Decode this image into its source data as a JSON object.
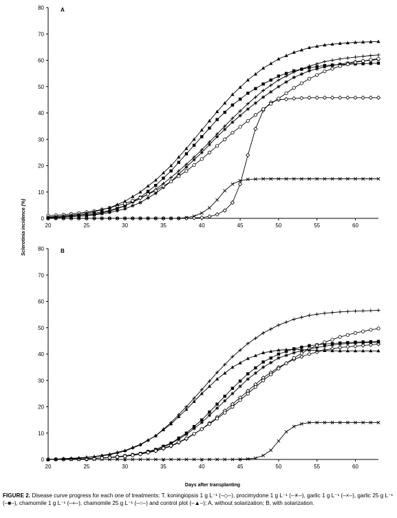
{
  "figure": {
    "panel_labels": [
      "A",
      "B"
    ],
    "ylabel": "Sclerotinia incidence (%)",
    "xlabel": "Days after transplanting",
    "caption_lead": "FIGURE 2.",
    "caption_text": "Disease curve progress for each one of treatments: T. koningiopsis 1 g L⁻¹ (–◇–), procimydone 1 g L⁻¹ (–✳–), garlic 1 g L⁻¹ (–×–), garlic 25 g L⁻¹ (–■–), chamomile 1 g L⁻¹ (–+–), chamomile 25 g L⁻¹ (–○–) and control plot (–▲–); A, without solarization; B, with solarization."
  },
  "chart_data": [
    {
      "type": "line",
      "panel": "A",
      "xlim": [
        20,
        63
      ],
      "ylim": [
        0,
        80
      ],
      "xticks": [
        20,
        25,
        30,
        35,
        40,
        45,
        50,
        55,
        60
      ],
      "yticks": [
        0,
        10,
        20,
        30,
        40,
        50,
        60,
        70,
        80
      ],
      "grid": false,
      "series": [
        {
          "marker": "diamond",
          "x": [
            20,
            22,
            24,
            26,
            28,
            30,
            32,
            34,
            36,
            38,
            40,
            41,
            42,
            43,
            44,
            45,
            46,
            47,
            48,
            49,
            50,
            52,
            54,
            56,
            58,
            60,
            62,
            63
          ],
          "y": [
            0,
            0,
            0,
            0,
            0,
            0,
            0,
            0,
            0,
            0,
            0.3,
            0.7,
            1.5,
            3,
            6,
            13,
            24,
            34,
            41,
            44,
            45,
            45.5,
            45.8,
            45.8,
            45.8,
            45.8,
            45.8,
            45.8
          ]
        },
        {
          "marker": "star",
          "x": [
            20,
            22,
            24,
            26,
            28,
            30,
            32,
            34,
            36,
            38,
            40,
            42,
            44,
            46,
            48,
            50,
            52,
            54,
            56,
            58,
            60,
            62,
            63
          ],
          "y": [
            0.3,
            0.5,
            0.8,
            1.3,
            2.2,
            3.6,
            6,
            9.5,
            14,
            19.5,
            25,
            31,
            36.5,
            41.5,
            46,
            50,
            53.5,
            56,
            57.5,
            58.5,
            59.5,
            60,
            60.3
          ]
        },
        {
          "marker": "x",
          "x": [
            20,
            22,
            24,
            26,
            28,
            30,
            32,
            34,
            36,
            37,
            38,
            39,
            40,
            41,
            42,
            43,
            44,
            45,
            46,
            48,
            50,
            52,
            54,
            56,
            58,
            60,
            62,
            63
          ],
          "y": [
            0,
            0,
            0,
            0,
            0,
            0,
            0,
            0,
            0,
            0,
            0.3,
            0.8,
            2,
            4,
            7,
            10.5,
            13,
            14.3,
            14.8,
            15,
            15,
            15,
            15,
            15,
            15,
            15,
            15,
            15
          ]
        },
        {
          "marker": "square",
          "x": [
            20,
            22,
            24,
            26,
            28,
            30,
            32,
            34,
            36,
            38,
            40,
            42,
            44,
            46,
            48,
            50,
            52,
            54,
            56,
            58,
            60,
            62,
            63
          ],
          "y": [
            0.2,
            0.4,
            0.8,
            1.5,
            2.7,
            4.7,
            8,
            12.5,
            18,
            24.5,
            31,
            37.5,
            43,
            47.5,
            51,
            54,
            56,
            57.2,
            58,
            58.4,
            58.6,
            58.8,
            58.9
          ]
        },
        {
          "marker": "plus",
          "x": [
            20,
            22,
            24,
            26,
            28,
            30,
            32,
            34,
            36,
            38,
            40,
            42,
            44,
            46,
            48,
            50,
            52,
            54,
            56,
            58,
            60,
            62,
            63
          ],
          "y": [
            0.5,
            0.8,
            1.2,
            1.9,
            3,
            4.8,
            7.5,
            11,
            15.5,
            20.5,
            26,
            32,
            38,
            43.5,
            48.5,
            52.5,
            55.5,
            57.8,
            59.5,
            60.5,
            61.2,
            61.8,
            62
          ]
        },
        {
          "marker": "circle",
          "x": [
            20,
            22,
            24,
            26,
            28,
            30,
            32,
            34,
            36,
            38,
            40,
            42,
            44,
            46,
            48,
            50,
            52,
            54,
            56,
            58,
            60,
            62,
            63
          ],
          "y": [
            1,
            1.4,
            2,
            2.8,
            4,
            5.6,
            7.8,
            10.5,
            14,
            18,
            22.5,
            27.5,
            32.5,
            37,
            41.5,
            45.5,
            49.5,
            53,
            55.8,
            57.8,
            59.2,
            60.2,
            60.6
          ]
        },
        {
          "marker": "triangle",
          "x": [
            20,
            22,
            24,
            26,
            28,
            30,
            32,
            34,
            36,
            38,
            40,
            42,
            44,
            46,
            48,
            50,
            52,
            54,
            56,
            58,
            60,
            62,
            63
          ],
          "y": [
            0.5,
            0.9,
            1.5,
            2.5,
            4,
            6.5,
            10,
            14.5,
            20,
            26.5,
            33.5,
            40.5,
            47,
            52.5,
            57,
            60.5,
            63,
            64.8,
            65.8,
            66.4,
            66.8,
            67,
            67.1
          ]
        }
      ]
    },
    {
      "type": "line",
      "panel": "B",
      "xlim": [
        20,
        63
      ],
      "ylim": [
        0,
        80
      ],
      "xticks": [
        20,
        25,
        30,
        35,
        40,
        45,
        50,
        55,
        60
      ],
      "yticks": [
        0,
        10,
        20,
        30,
        40,
        50,
        60,
        70,
        80
      ],
      "grid": false,
      "series": [
        {
          "marker": "diamond",
          "x": [
            20,
            22,
            24,
            26,
            28,
            30,
            32,
            34,
            36,
            38,
            40,
            42,
            44,
            46,
            48,
            50,
            52,
            54,
            56,
            58,
            60,
            62,
            63
          ],
          "y": [
            0,
            0.1,
            0.2,
            0.4,
            0.7,
            1.2,
            2,
            3.2,
            5,
            7.8,
            11.5,
            16,
            21,
            26,
            31,
            35,
            38,
            40,
            41.5,
            42.5,
            43,
            43.5,
            43.8
          ]
        },
        {
          "marker": "star",
          "x": [
            20,
            22,
            24,
            26,
            28,
            30,
            32,
            34,
            36,
            38,
            40,
            42,
            44,
            46,
            48,
            50,
            52,
            54,
            56,
            58,
            60,
            62,
            63
          ],
          "y": [
            0,
            0.1,
            0.2,
            0.4,
            0.7,
            1.2,
            2,
            3.5,
            6,
            9.5,
            14,
            19.5,
            25,
            30.5,
            35,
            38.5,
            40.5,
            42,
            43,
            43.8,
            44.2,
            44.4,
            44.5
          ]
        },
        {
          "marker": "x",
          "x": [
            20,
            22,
            24,
            26,
            28,
            30,
            32,
            34,
            36,
            38,
            40,
            42,
            44,
            46,
            47,
            48,
            49,
            50,
            51,
            52,
            53,
            54,
            56,
            58,
            60,
            62,
            63
          ],
          "y": [
            0,
            0,
            0,
            0,
            0,
            0,
            0,
            0,
            0,
            0,
            0,
            0,
            0,
            0.2,
            0.5,
            1.5,
            3.5,
            7,
            10.5,
            12.5,
            13.5,
            14,
            14,
            14,
            14,
            14,
            14
          ]
        },
        {
          "marker": "square",
          "x": [
            20,
            22,
            24,
            26,
            28,
            30,
            32,
            34,
            36,
            38,
            40,
            42,
            44,
            46,
            48,
            50,
            52,
            54,
            56,
            58,
            60,
            62,
            63
          ],
          "y": [
            0,
            0.1,
            0.2,
            0.4,
            0.8,
            1.4,
            2.3,
            3.8,
            6.2,
            10,
            15,
            21,
            27,
            32.5,
            37,
            40,
            42,
            43.2,
            43.8,
            44.2,
            44.5,
            44.7,
            44.8
          ]
        },
        {
          "marker": "plus",
          "x": [
            20,
            22,
            24,
            26,
            28,
            30,
            32,
            34,
            36,
            38,
            40,
            42,
            44,
            46,
            48,
            50,
            52,
            54,
            56,
            58,
            60,
            62,
            63
          ],
          "y": [
            0,
            0.2,
            0.5,
            1,
            1.8,
            3.2,
            5.5,
            9,
            14,
            20,
            26.5,
            33,
            39,
            44,
            48,
            51,
            53.2,
            54.7,
            55.5,
            56,
            56.3,
            56.5,
            56.6
          ]
        },
        {
          "marker": "circle",
          "x": [
            20,
            22,
            24,
            26,
            28,
            30,
            32,
            34,
            36,
            38,
            40,
            42,
            44,
            46,
            48,
            50,
            52,
            54,
            56,
            58,
            60,
            62,
            63
          ],
          "y": [
            0,
            0.1,
            0.2,
            0.4,
            0.7,
            1.2,
            2,
            3.3,
            5.2,
            8,
            11.5,
            15.5,
            20,
            25,
            30,
            34.5,
            38.5,
            42,
            44.5,
            46.5,
            48,
            49.2,
            49.7
          ]
        },
        {
          "marker": "triangle",
          "x": [
            20,
            22,
            24,
            26,
            28,
            30,
            32,
            34,
            36,
            38,
            40,
            42,
            44,
            46,
            48,
            50,
            52,
            54,
            56,
            58,
            60,
            62,
            63
          ],
          "y": [
            0,
            0.3,
            0.6,
            1.1,
            2,
            3.4,
            5.7,
            9,
            13.5,
            19,
            25,
            30.5,
            35,
            38.3,
            40.5,
            41.5,
            41.8,
            41.5,
            41.3,
            41.2,
            41.2,
            41.2,
            41.2
          ]
        }
      ]
    }
  ]
}
